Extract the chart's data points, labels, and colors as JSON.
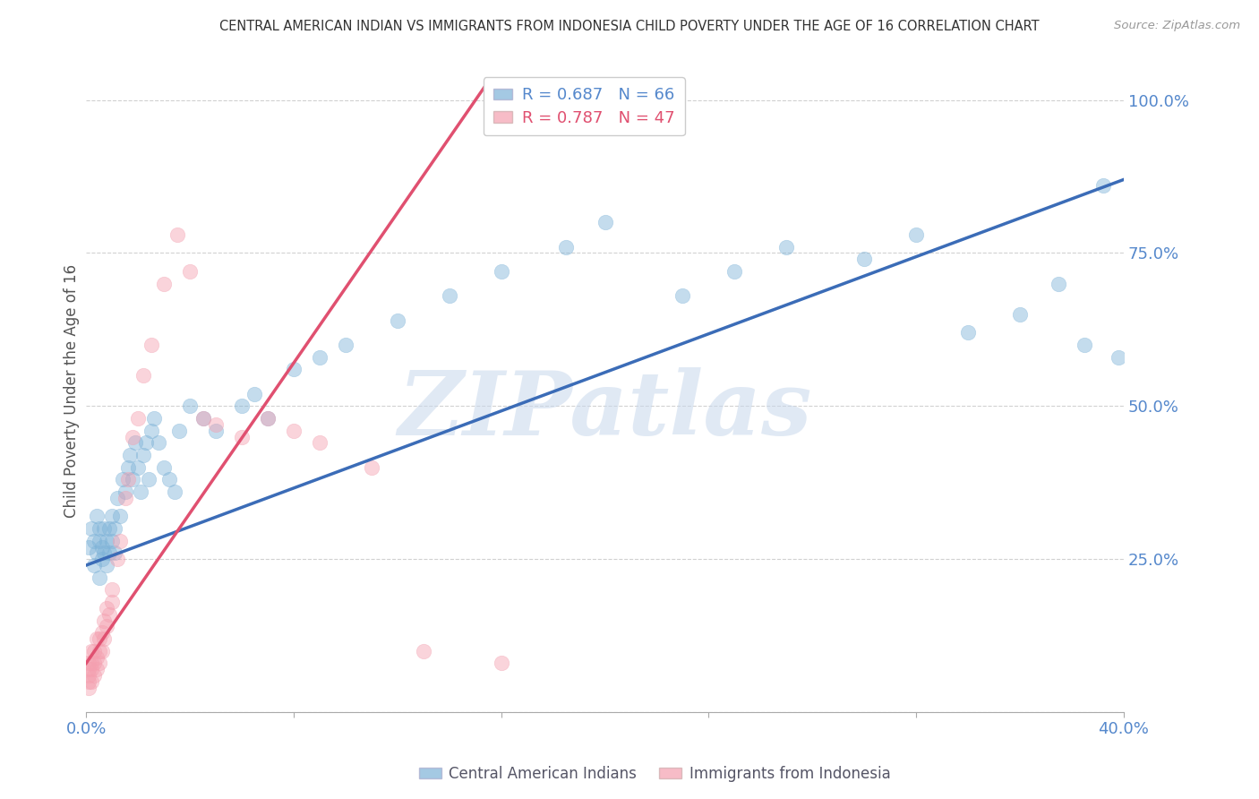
{
  "title": "CENTRAL AMERICAN INDIAN VS IMMIGRANTS FROM INDONESIA CHILD POVERTY UNDER THE AGE OF 16 CORRELATION CHART",
  "source": "Source: ZipAtlas.com",
  "ylabel": "Child Poverty Under the Age of 16",
  "xlim": [
    0.0,
    0.4
  ],
  "ylim": [
    0.0,
    1.05
  ],
  "blue_color": "#7EB3D8",
  "pink_color": "#F4A0B0",
  "blue_line_color": "#3B6CB7",
  "pink_line_color": "#E05070",
  "blue_R": 0.687,
  "blue_N": 66,
  "pink_R": 0.787,
  "pink_N": 47,
  "legend_label_blue": "Central American Indians",
  "legend_label_pink": "Immigrants from Indonesia",
  "watermark": "ZIPatlas",
  "background_color": "#ffffff",
  "grid_color": "#cccccc",
  "blue_line_x0": 0.0,
  "blue_line_y0": 0.24,
  "blue_line_x1": 0.4,
  "blue_line_y1": 0.87,
  "pink_line_x0": 0.0,
  "pink_line_y0": 0.08,
  "pink_line_x1": 0.155,
  "pink_line_y1": 1.03,
  "blue_scatter_x": [
    0.001,
    0.002,
    0.003,
    0.003,
    0.004,
    0.004,
    0.005,
    0.005,
    0.005,
    0.006,
    0.006,
    0.007,
    0.007,
    0.008,
    0.008,
    0.009,
    0.009,
    0.01,
    0.01,
    0.011,
    0.011,
    0.012,
    0.013,
    0.014,
    0.015,
    0.016,
    0.017,
    0.018,
    0.019,
    0.02,
    0.021,
    0.022,
    0.023,
    0.024,
    0.025,
    0.026,
    0.028,
    0.03,
    0.032,
    0.034,
    0.036,
    0.04,
    0.045,
    0.05,
    0.06,
    0.065,
    0.07,
    0.08,
    0.09,
    0.1,
    0.12,
    0.14,
    0.16,
    0.185,
    0.2,
    0.23,
    0.25,
    0.27,
    0.3,
    0.32,
    0.34,
    0.36,
    0.375,
    0.385,
    0.392,
    0.398
  ],
  "blue_scatter_y": [
    0.27,
    0.3,
    0.24,
    0.28,
    0.26,
    0.32,
    0.22,
    0.28,
    0.3,
    0.25,
    0.27,
    0.26,
    0.3,
    0.24,
    0.28,
    0.26,
    0.3,
    0.28,
    0.32,
    0.26,
    0.3,
    0.35,
    0.32,
    0.38,
    0.36,
    0.4,
    0.42,
    0.38,
    0.44,
    0.4,
    0.36,
    0.42,
    0.44,
    0.38,
    0.46,
    0.48,
    0.44,
    0.4,
    0.38,
    0.36,
    0.46,
    0.5,
    0.48,
    0.46,
    0.5,
    0.52,
    0.48,
    0.56,
    0.58,
    0.6,
    0.64,
    0.68,
    0.72,
    0.76,
    0.8,
    0.68,
    0.72,
    0.76,
    0.74,
    0.78,
    0.62,
    0.65,
    0.7,
    0.6,
    0.86,
    0.58
  ],
  "pink_scatter_x": [
    0.001,
    0.001,
    0.001,
    0.001,
    0.001,
    0.002,
    0.002,
    0.002,
    0.002,
    0.003,
    0.003,
    0.003,
    0.004,
    0.004,
    0.004,
    0.005,
    0.005,
    0.005,
    0.006,
    0.006,
    0.007,
    0.007,
    0.008,
    0.008,
    0.009,
    0.01,
    0.01,
    0.012,
    0.013,
    0.015,
    0.016,
    0.018,
    0.02,
    0.022,
    0.025,
    0.03,
    0.035,
    0.04,
    0.045,
    0.05,
    0.06,
    0.07,
    0.08,
    0.09,
    0.11,
    0.13,
    0.16
  ],
  "pink_scatter_y": [
    0.04,
    0.05,
    0.06,
    0.07,
    0.08,
    0.05,
    0.07,
    0.08,
    0.1,
    0.06,
    0.08,
    0.1,
    0.07,
    0.09,
    0.12,
    0.08,
    0.1,
    0.12,
    0.1,
    0.13,
    0.12,
    0.15,
    0.14,
    0.17,
    0.16,
    0.18,
    0.2,
    0.25,
    0.28,
    0.35,
    0.38,
    0.45,
    0.48,
    0.55,
    0.6,
    0.7,
    0.78,
    0.72,
    0.48,
    0.47,
    0.45,
    0.48,
    0.46,
    0.44,
    0.4,
    0.1,
    0.08
  ]
}
